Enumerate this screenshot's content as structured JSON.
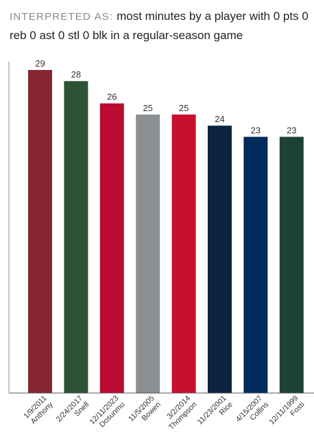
{
  "header": {
    "label": "INTERPRETED AS:",
    "text": "most minutes by a player with 0 pts 0 reb 0 ast 0 stl 0 blk in a regular-season game"
  },
  "chart_data": {
    "type": "bar",
    "title": "",
    "xlabel": "",
    "ylabel": "",
    "ylim": [
      0,
      29
    ],
    "grid": false,
    "categories": [
      {
        "date": "1/9/2011",
        "player": "Anthony"
      },
      {
        "date": "2/24/2017",
        "player": "Snell"
      },
      {
        "date": "12/11/2023",
        "player": "Dosunmu"
      },
      {
        "date": "11/5/2005",
        "player": "Bowen"
      },
      {
        "date": "3/2/2014",
        "player": "Thompson"
      },
      {
        "date": "11/23/2001",
        "player": "Rice"
      },
      {
        "date": "4/15/2007",
        "player": "Collins"
      },
      {
        "date": "12/11/1999",
        "player": "Fosti"
      }
    ],
    "values": [
      29,
      28,
      26,
      25,
      25,
      24,
      23,
      23
    ],
    "colors": [
      "#862633",
      "#2c5234",
      "#ba0c2f",
      "#8d9093",
      "#c8102e",
      "#0c2340",
      "#002b5c",
      "#1d4233"
    ]
  }
}
